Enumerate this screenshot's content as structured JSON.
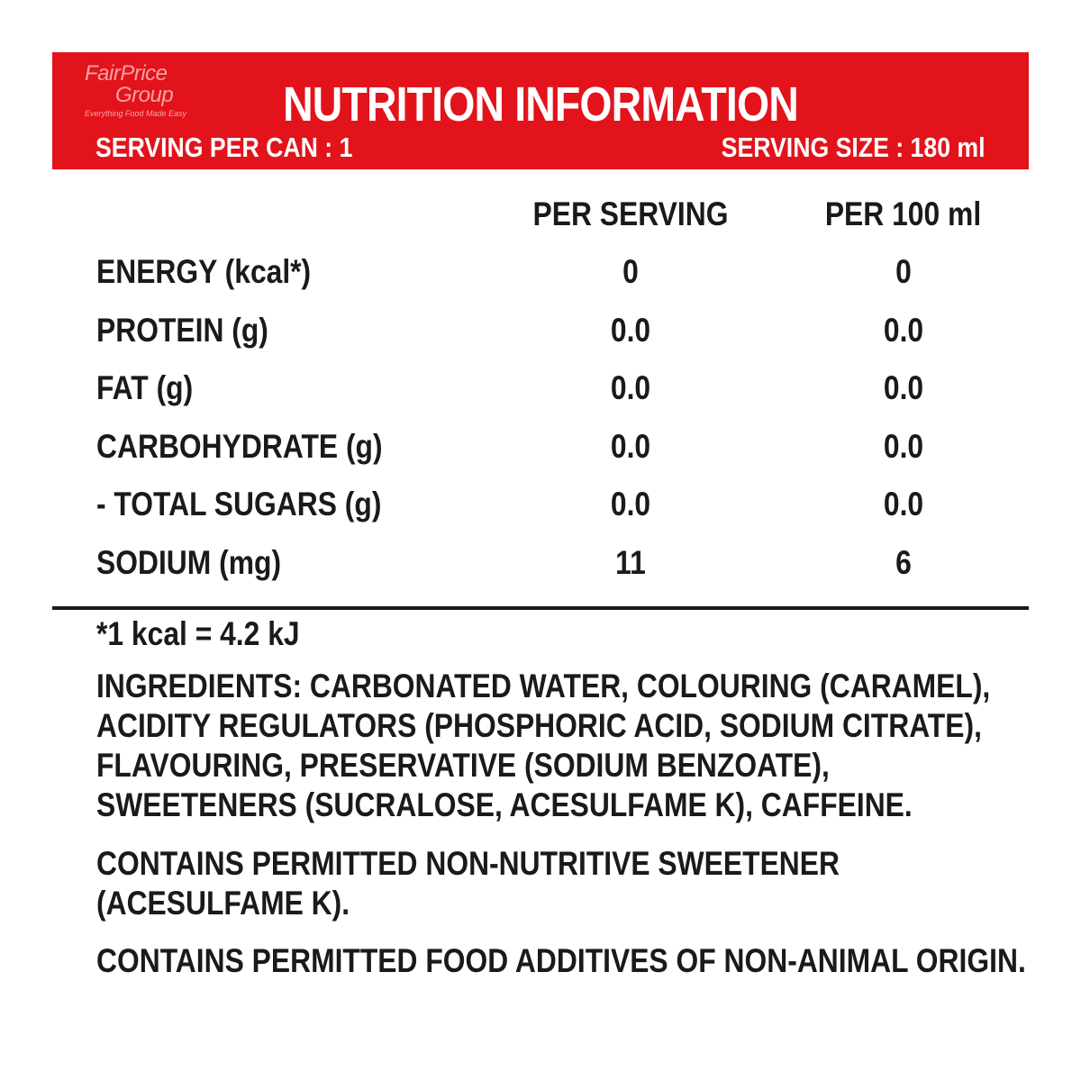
{
  "brand": {
    "logo_line1": "FairPrice",
    "logo_line2": "Group",
    "tagline": "Everything Food Made Easy",
    "colors": {
      "header_bg": "#e3131b",
      "header_text": "#ffffff",
      "logo_text": "#f4a3a6",
      "body_text": "#1a1a1a"
    }
  },
  "header": {
    "title": "NUTRITION INFORMATION",
    "serving_per": "SERVING PER CAN : 1",
    "serving_size": "SERVING SIZE : 180 ml"
  },
  "table": {
    "columns": [
      "PER SERVING",
      "PER 100 ml"
    ],
    "rows": [
      {
        "label": "ENERGY (kcal*)",
        "per_serving": "0",
        "per_100ml": "0"
      },
      {
        "label": "PROTEIN (g)",
        "per_serving": "0.0",
        "per_100ml": "0.0"
      },
      {
        "label": "FAT (g)",
        "per_serving": "0.0",
        "per_100ml": "0.0"
      },
      {
        "label": "CARBOHYDRATE (g)",
        "per_serving": "0.0",
        "per_100ml": "0.0"
      },
      {
        "label": "- TOTAL SUGARS (g)",
        "per_serving": "0.0",
        "per_100ml": "0.0"
      },
      {
        "label": "SODIUM (mg)",
        "per_serving": "11",
        "per_100ml": "6"
      }
    ]
  },
  "footnote": "*1 kcal = 4.2 kJ",
  "ingredients": [
    "INGREDIENTS: CARBONATED WATER, COLOURING (CARAMEL),",
    "ACIDITY REGULATORS (PHOSPHORIC ACID, SODIUM CITRATE),",
    "FLAVOURING, PRESERVATIVE (SODIUM BENZOATE),",
    "SWEETENERS (SUCRALOSE, ACESULFAME K), CAFFEINE."
  ],
  "sweetener_notice": [
    "CONTAINS PERMITTED NON-NUTRITIVE SWEETENER",
    "(ACESULFAME K)."
  ],
  "additives_notice": "CONTAINS PERMITTED FOOD ADDITIVES OF NON-ANIMAL ORIGIN."
}
